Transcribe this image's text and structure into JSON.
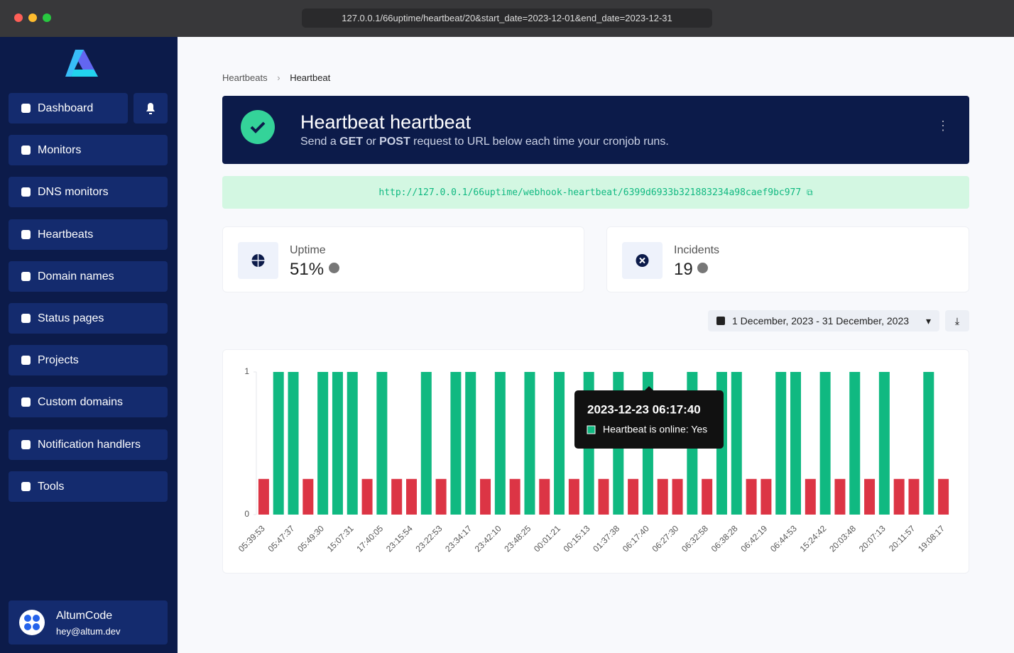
{
  "browser": {
    "url": "127.0.0.1/66uptime/heartbeat/20&start_date=2023-12-01&end_date=2023-12-31"
  },
  "sidebar": {
    "nav": [
      "Dashboard",
      "Monitors",
      "DNS monitors",
      "Heartbeats",
      "Domain names",
      "Status pages",
      "Projects",
      "Custom domains",
      "Notification handlers",
      "Tools"
    ],
    "user": {
      "name": "AltumCode",
      "email": "hey@altum.dev"
    }
  },
  "breadcrumb": [
    "Heartbeats",
    "Heartbeat"
  ],
  "header": {
    "title": "Heartbeat heartbeat",
    "description": [
      "Send a ",
      "GET",
      " or ",
      "POST",
      " request to URL below each time your cronjob runs."
    ]
  },
  "webhook_url": "http://127.0.0.1/66uptime/webhook-heartbeat/6399d6933b321883234a98caef9bc977",
  "stats": [
    {
      "label": "Uptime",
      "value": "51%"
    },
    {
      "label": "Incidents",
      "value": "19"
    }
  ],
  "date_range": "1 December, 2023 - 31 December, 2023",
  "chart_data": {
    "type": "bar",
    "categories": [
      "05:39:53",
      null,
      "05:47:37",
      null,
      "05:49:30",
      null,
      "15:07:31",
      null,
      "17:40:05",
      null,
      "23:15:54",
      null,
      "23:22:53",
      null,
      "23:34:17",
      null,
      "23:42:10",
      null,
      "23:48:25",
      null,
      "00:01:21",
      null,
      "00:15:13",
      null,
      "01:37:38",
      null,
      "06:17:40",
      null,
      "06:27:30",
      null,
      "06:32:58",
      null,
      "06:38:28",
      null,
      "06:42:19",
      null,
      "06:44:53",
      null,
      "15:24:42",
      null,
      "20:03:48",
      null,
      "20:07:13",
      null,
      "20:11:57",
      null,
      "19:08:17"
    ],
    "values": [
      0.25,
      1,
      1,
      0.25,
      1,
      1,
      1,
      0.25,
      1,
      0.25,
      0.25,
      1,
      0.25,
      1,
      1,
      0.25,
      1,
      0.25,
      1,
      0.25,
      1,
      0.25,
      1,
      0.25,
      1,
      0.25,
      1,
      0.25,
      0.25,
      1,
      0.25,
      1,
      1,
      0.25,
      0.25,
      1,
      1,
      0.25,
      1,
      0.25,
      1,
      0.25,
      1,
      0.25,
      0.25,
      1,
      0.25
    ],
    "colors": [
      "#dc3545",
      "#10b981",
      "#10b981",
      "#dc3545",
      "#10b981",
      "#10b981",
      "#10b981",
      "#dc3545",
      "#10b981",
      "#dc3545",
      "#dc3545",
      "#10b981",
      "#dc3545",
      "#10b981",
      "#10b981",
      "#dc3545",
      "#10b981",
      "#dc3545",
      "#10b981",
      "#dc3545",
      "#10b981",
      "#dc3545",
      "#10b981",
      "#dc3545",
      "#10b981",
      "#dc3545",
      "#10b981",
      "#dc3545",
      "#dc3545",
      "#10b981",
      "#dc3545",
      "#10b981",
      "#10b981",
      "#dc3545",
      "#dc3545",
      "#10b981",
      "#10b981",
      "#dc3545",
      "#10b981",
      "#dc3545",
      "#10b981",
      "#dc3545",
      "#10b981",
      "#dc3545",
      "#dc3545",
      "#10b981",
      "#dc3545"
    ],
    "ylim": [
      0,
      1
    ],
    "yticks": [
      0,
      1
    ],
    "tooltip": {
      "title": "2023-12-23 06:17:40",
      "label": "Heartbeat is online: Yes",
      "color": "#10b981"
    }
  }
}
